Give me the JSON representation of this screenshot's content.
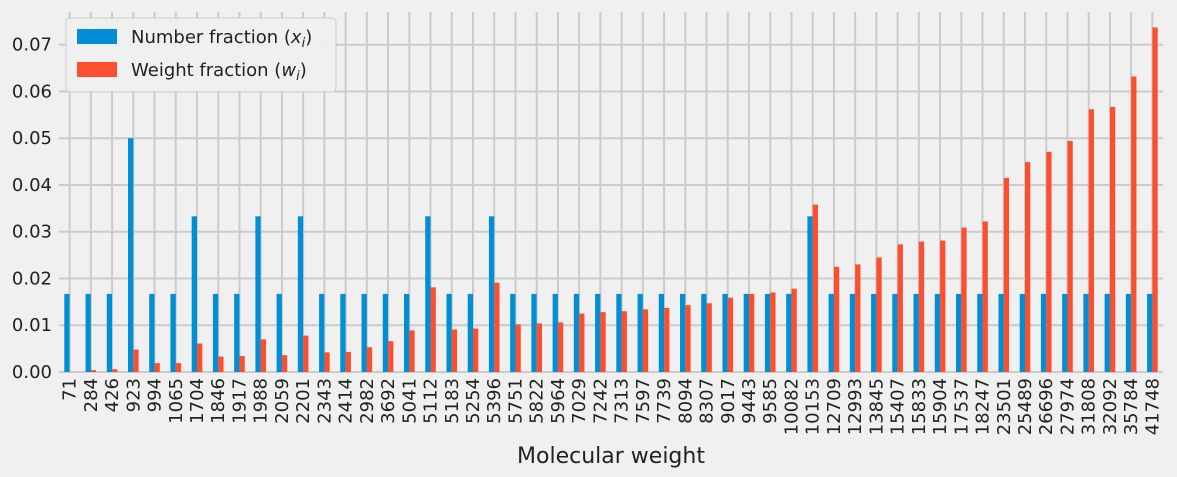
{
  "chart_data": {
    "type": "bar",
    "xlabel": "Molecular weight",
    "ylabel": "",
    "ylim": [
      0,
      0.077
    ],
    "yticks": [
      0.0,
      0.01,
      0.02,
      0.03,
      0.04,
      0.05,
      0.06,
      0.07
    ],
    "ytick_labels": [
      "0.00",
      "0.01",
      "0.02",
      "0.03",
      "0.04",
      "0.05",
      "0.06",
      "0.07"
    ],
    "grid": true,
    "legend_position": "top-left",
    "categories": [
      "71",
      "284",
      "426",
      "923",
      "994",
      "1065",
      "1704",
      "1846",
      "1917",
      "1988",
      "2059",
      "2201",
      "2343",
      "2414",
      "2982",
      "3692",
      "5041",
      "5112",
      "5183",
      "5254",
      "5396",
      "5751",
      "5822",
      "5964",
      "7029",
      "7242",
      "7313",
      "7597",
      "7739",
      "8094",
      "8307",
      "9017",
      "9443",
      "9585",
      "10082",
      "10153",
      "12709",
      "12993",
      "13845",
      "15407",
      "15833",
      "15904",
      "17537",
      "18247",
      "23501",
      "25489",
      "26696",
      "27974",
      "31808",
      "32092",
      "35784",
      "41748"
    ],
    "series": [
      {
        "name": "Number fraction (x_i)",
        "legend_main": "Number fraction (",
        "legend_sub": "i",
        "legend_var": "x",
        "color": "#008fd5",
        "values": [
          0.0167,
          0.0167,
          0.0167,
          0.05,
          0.0167,
          0.0167,
          0.0333,
          0.0167,
          0.0167,
          0.0333,
          0.0167,
          0.0333,
          0.0167,
          0.0167,
          0.0167,
          0.0167,
          0.0167,
          0.0333,
          0.0167,
          0.0167,
          0.0333,
          0.0167,
          0.0167,
          0.0167,
          0.0167,
          0.0167,
          0.0167,
          0.0167,
          0.0167,
          0.0167,
          0.0167,
          0.0167,
          0.0167,
          0.0167,
          0.0167,
          0.0333,
          0.0167,
          0.0167,
          0.0167,
          0.0167,
          0.0167,
          0.0167,
          0.0167,
          0.0167,
          0.0167,
          0.0167,
          0.0167,
          0.0167,
          0.0167,
          0.0167,
          0.0167,
          0.0167
        ]
      },
      {
        "name": "Weight fraction (w_i)",
        "legend_main": "Weight fraction (",
        "legend_sub": "i",
        "legend_var": "w",
        "color": "#fc4f30",
        "values": [
          0.0,
          0.0004,
          0.0006,
          0.0048,
          0.0019,
          0.0019,
          0.0061,
          0.0033,
          0.0034,
          0.007,
          0.0036,
          0.0078,
          0.0042,
          0.0043,
          0.0053,
          0.0066,
          0.0089,
          0.0181,
          0.0091,
          0.0093,
          0.0191,
          0.0102,
          0.0104,
          0.0106,
          0.0125,
          0.0128,
          0.013,
          0.0134,
          0.0137,
          0.0143,
          0.0147,
          0.0159,
          0.0167,
          0.017,
          0.0178,
          0.0358,
          0.0225,
          0.023,
          0.0245,
          0.0273,
          0.0279,
          0.0281,
          0.0309,
          0.0322,
          0.0415,
          0.0449,
          0.0471,
          0.0494,
          0.0562,
          0.0567,
          0.0632,
          0.0737
        ]
      }
    ]
  }
}
